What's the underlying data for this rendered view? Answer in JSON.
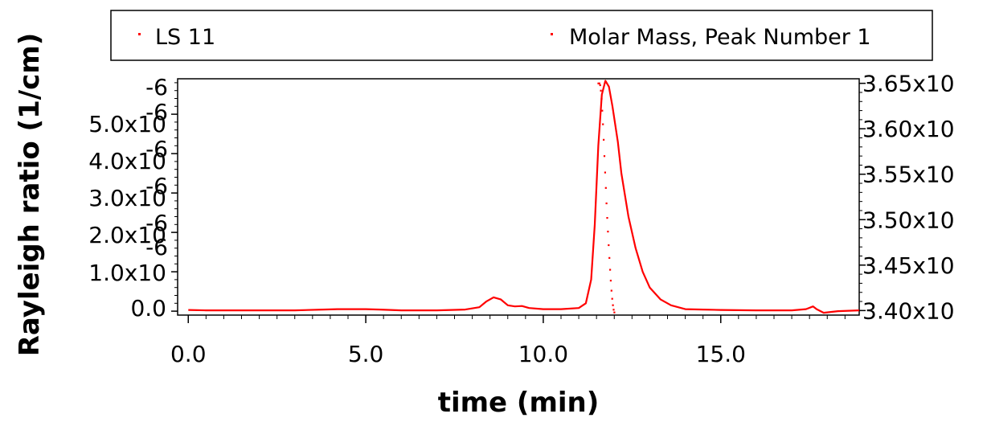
{
  "chart_data": {
    "type": "line",
    "title": "",
    "xlabel": "time (min)",
    "ylabel": "Rayleigh ratio (1/cm)",
    "xlim": [
      -0.3,
      18.9
    ],
    "ylim": [
      -1e-07,
      5.9e-06
    ],
    "y2lim": [
      3.395,
      3.655
    ],
    "x_tick_labels": [
      "0.0",
      "5.0",
      "10.0",
      "15.0"
    ],
    "x_ticks": [
      0,
      5,
      10,
      15
    ],
    "y_tick_labels": [
      "0.0",
      "1.0x10",
      "2.0x10",
      "3.0x10",
      "4.0x10",
      "5.0x10",
      "-6",
      "-6",
      "-6",
      "-6",
      "-6",
      "-6"
    ],
    "y_ticks": [
      0,
      1e-06,
      2e-06,
      3e-06,
      4e-06,
      5e-06
    ],
    "y2_tick_labels": [
      "3.40x10",
      "3.45x10",
      "3.50x10",
      "3.55x10",
      "3.60x10",
      "3.65x10"
    ],
    "y2_ticks": [
      3.4,
      3.45,
      3.5,
      3.55,
      3.6,
      3.65
    ],
    "legend": {
      "placement": "top",
      "entries": [
        "LS  11",
        "Molar Mass, Peak Number 1"
      ]
    },
    "series": [
      {
        "name": "LS  11",
        "color": "#ff0000",
        "style": "line",
        "axis": "left",
        "x": [
          0.0,
          0.5,
          1.0,
          2.0,
          3.0,
          3.8,
          4.2,
          5.0,
          5.4,
          6.0,
          7.0,
          7.8,
          8.2,
          8.4,
          8.6,
          8.8,
          9.0,
          9.2,
          9.4,
          9.6,
          10.0,
          10.5,
          11.0,
          11.2,
          11.35,
          11.45,
          11.55,
          11.65,
          11.75,
          11.85,
          11.95,
          12.1,
          12.2,
          12.4,
          12.6,
          12.8,
          13.0,
          13.3,
          13.6,
          14.0,
          14.5,
          15.0,
          16.0,
          17.0,
          17.4,
          17.6,
          17.7,
          17.9,
          18.3,
          18.9
        ],
        "y": [
          3e-08,
          2e-08,
          2e-08,
          2e-08,
          2e-08,
          4e-08,
          5e-08,
          5e-08,
          4e-08,
          2e-08,
          2e-08,
          4e-08,
          1e-07,
          2.5e-07,
          3.5e-07,
          3e-07,
          1.5e-07,
          1.2e-07,
          1.3e-07,
          8e-08,
          5e-08,
          5e-08,
          8e-08,
          2e-07,
          8e-07,
          2.2e-06,
          4.2e-06,
          5.5e-06,
          5.85e-06,
          5.7e-06,
          5.2e-06,
          4.3e-06,
          3.5e-06,
          2.4e-06,
          1.6e-06,
          1e-06,
          6e-07,
          3e-07,
          1.5e-07,
          5e-08,
          4e-08,
          3e-08,
          2e-08,
          2e-08,
          5e-08,
          1.2e-07,
          5e-08,
          -4e-08,
          0.0,
          2e-08
        ]
      },
      {
        "name": "Molar Mass, Peak Number 1",
        "color": "#ff0000",
        "style": "dots",
        "axis": "right",
        "x": [
          11.55,
          11.58,
          11.6,
          11.62,
          11.64,
          11.66,
          11.68,
          11.7,
          11.72,
          11.74,
          11.76,
          11.78,
          11.8,
          11.82,
          11.84,
          11.86,
          11.88,
          11.9,
          11.92,
          11.94,
          11.96,
          11.98,
          12.0
        ],
        "y": [
          3.65,
          3.65,
          3.648,
          3.642,
          3.633,
          3.62,
          3.605,
          3.588,
          3.57,
          3.552,
          3.535,
          3.518,
          3.502,
          3.487,
          3.472,
          3.458,
          3.445,
          3.433,
          3.422,
          3.413,
          3.406,
          3.401,
          3.398
        ]
      }
    ]
  }
}
